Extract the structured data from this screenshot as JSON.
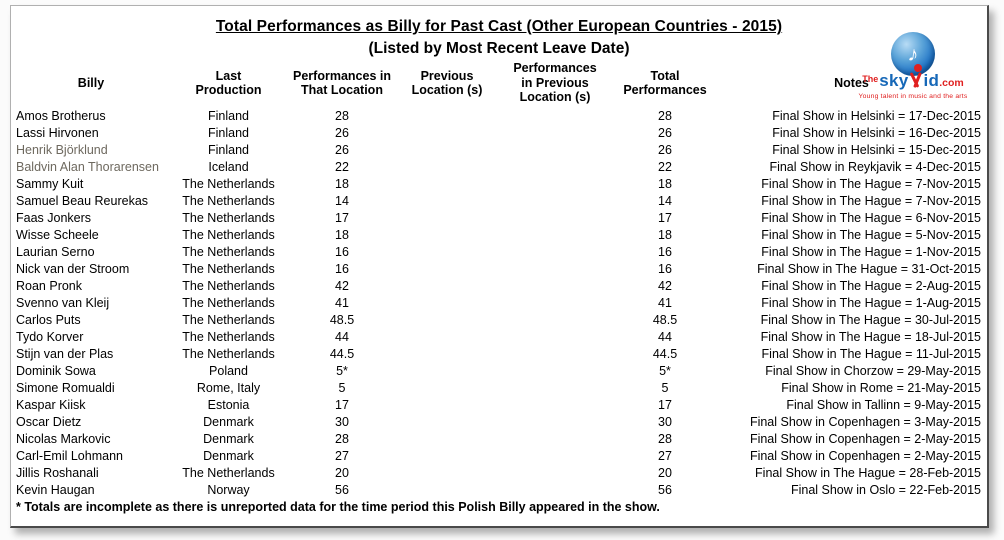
{
  "page": {
    "title": "Total Performances as Billy for Past Cast (Other European Countries - 2015)",
    "subtitle": "(Listed by Most Recent Leave Date)",
    "footnote": "* Totals are incomplete as there is unreported data for the time period this Polish Billy appeared in the show."
  },
  "logo": {
    "prefix": "The",
    "sky": "sky",
    "id": "id",
    "com": ".com",
    "tagline": "Young talent in music and the arts",
    "music_note": "♪",
    "colors": {
      "blue": "#1668b8",
      "red": "#e02020"
    }
  },
  "table": {
    "muted_name_color": "#6e695f",
    "columns": [
      {
        "key": "billy",
        "label": "Billy"
      },
      {
        "key": "last_production",
        "label": "Last\nProduction"
      },
      {
        "key": "perf_that_location",
        "label": "Performances in\nThat Location"
      },
      {
        "key": "previous_location",
        "label": "Previous\nLocation (s)"
      },
      {
        "key": "perf_previous_location",
        "label": "Performances\nin Previous\nLocation (s)"
      },
      {
        "key": "total_performances",
        "label": "Total\nPerformances"
      },
      {
        "key": "notes",
        "label": "Notes"
      }
    ],
    "rows": [
      {
        "billy": "Amos Brotherus",
        "last_production": "Finland",
        "perf_that_location": "28",
        "previous_location": "",
        "perf_previous_location": "",
        "total_performances": "28",
        "notes": "Final Show in Helsinki = 17-Dec-2015"
      },
      {
        "billy": "Lassi Hirvonen",
        "last_production": "Finland",
        "perf_that_location": "26",
        "previous_location": "",
        "perf_previous_location": "",
        "total_performances": "26",
        "notes": "Final Show in Helsinki = 16-Dec-2015"
      },
      {
        "billy": "Henrik Björklund",
        "last_production": "Finland",
        "perf_that_location": "26",
        "previous_location": "",
        "perf_previous_location": "",
        "total_performances": "26",
        "notes": "Final Show in Helsinki = 15-Dec-2015",
        "muted_name": true
      },
      {
        "billy": "Baldvin Alan Thorarensen",
        "last_production": "Iceland",
        "perf_that_location": "22",
        "previous_location": "",
        "perf_previous_location": "",
        "total_performances": "22",
        "notes": "Final Show in Reykjavik = 4-Dec-2015",
        "muted_name": true
      },
      {
        "billy": "Sammy Kuit",
        "last_production": "The Netherlands",
        "perf_that_location": "18",
        "previous_location": "",
        "perf_previous_location": "",
        "total_performances": "18",
        "notes": "Final Show in The Hague = 7-Nov-2015"
      },
      {
        "billy": "Samuel Beau Reurekas",
        "last_production": "The Netherlands",
        "perf_that_location": "14",
        "previous_location": "",
        "perf_previous_location": "",
        "total_performances": "14",
        "notes": "Final Show in The Hague = 7-Nov-2015"
      },
      {
        "billy": "Faas Jonkers",
        "last_production": "The Netherlands",
        "perf_that_location": "17",
        "previous_location": "",
        "perf_previous_location": "",
        "total_performances": "17",
        "notes": "Final Show in The Hague = 6-Nov-2015"
      },
      {
        "billy": "Wisse Scheele",
        "last_production": "The Netherlands",
        "perf_that_location": "18",
        "previous_location": "",
        "perf_previous_location": "",
        "total_performances": "18",
        "notes": "Final Show in The Hague = 5-Nov-2015"
      },
      {
        "billy": "Laurian Serno",
        "last_production": "The Netherlands",
        "perf_that_location": "16",
        "previous_location": "",
        "perf_previous_location": "",
        "total_performances": "16",
        "notes": "Final Show in The Hague = 1-Nov-2015"
      },
      {
        "billy": "Nick van der Stroom",
        "last_production": "The Netherlands",
        "perf_that_location": "16",
        "previous_location": "",
        "perf_previous_location": "",
        "total_performances": "16",
        "notes": "Final Show in The Hague = 31-Oct-2015"
      },
      {
        "billy": "Roan Pronk",
        "last_production": "The Netherlands",
        "perf_that_location": "42",
        "previous_location": "",
        "perf_previous_location": "",
        "total_performances": "42",
        "notes": "Final Show in The Hague = 2-Aug-2015"
      },
      {
        "billy": "Svenno van Kleij",
        "last_production": "The Netherlands",
        "perf_that_location": "41",
        "previous_location": "",
        "perf_previous_location": "",
        "total_performances": "41",
        "notes": "Final Show in The Hague = 1-Aug-2015"
      },
      {
        "billy": "Carlos Puts",
        "last_production": "The Netherlands",
        "perf_that_location": "48.5",
        "previous_location": "",
        "perf_previous_location": "",
        "total_performances": "48.5",
        "notes": "Final Show in The Hague = 30-Jul-2015"
      },
      {
        "billy": "Tydo Korver",
        "last_production": "The Netherlands",
        "perf_that_location": "44",
        "previous_location": "",
        "perf_previous_location": "",
        "total_performances": "44",
        "notes": "Final Show in The Hague = 18-Jul-2015"
      },
      {
        "billy": "Stijn van der Plas",
        "last_production": "The Netherlands",
        "perf_that_location": "44.5",
        "previous_location": "",
        "perf_previous_location": "",
        "total_performances": "44.5",
        "notes": "Final Show in The Hague = 11-Jul-2015"
      },
      {
        "billy": "Dominik Sowa",
        "last_production": "Poland",
        "perf_that_location": "5*",
        "previous_location": "",
        "perf_previous_location": "",
        "total_performances": "5*",
        "notes": "Final Show in Chorzow = 29-May-2015"
      },
      {
        "billy": "Simone Romualdi",
        "last_production": "Rome, Italy",
        "perf_that_location": "5",
        "previous_location": "",
        "perf_previous_location": "",
        "total_performances": "5",
        "notes": "Final Show in Rome = 21-May-2015"
      },
      {
        "billy": "Kaspar Kiisk",
        "last_production": "Estonia",
        "perf_that_location": "17",
        "previous_location": "",
        "perf_previous_location": "",
        "total_performances": "17",
        "notes": "Final Show in Tallinn = 9-May-2015"
      },
      {
        "billy": "Oscar Dietz",
        "last_production": "Denmark",
        "perf_that_location": "30",
        "previous_location": "",
        "perf_previous_location": "",
        "total_performances": "30",
        "notes": "Final Show in Copenhagen = 3-May-2015"
      },
      {
        "billy": "Nicolas Markovic",
        "last_production": "Denmark",
        "perf_that_location": "28",
        "previous_location": "",
        "perf_previous_location": "",
        "total_performances": "28",
        "notes": "Final Show in Copenhagen = 2-May-2015"
      },
      {
        "billy": "Carl-Emil Lohmann",
        "last_production": "Denmark",
        "perf_that_location": "27",
        "previous_location": "",
        "perf_previous_location": "",
        "total_performances": "27",
        "notes": "Final Show in Copenhagen = 2-May-2015"
      },
      {
        "billy": "Jillis Roshanali",
        "last_production": "The Netherlands",
        "perf_that_location": "20",
        "previous_location": "",
        "perf_previous_location": "",
        "total_performances": "20",
        "notes": "Final Show in The Hague = 28-Feb-2015"
      },
      {
        "billy": "Kevin Haugan",
        "last_production": "Norway",
        "perf_that_location": "56",
        "previous_location": "",
        "perf_previous_location": "",
        "total_performances": "56",
        "notes": "Final Show in Oslo = 22-Feb-2015"
      }
    ]
  }
}
